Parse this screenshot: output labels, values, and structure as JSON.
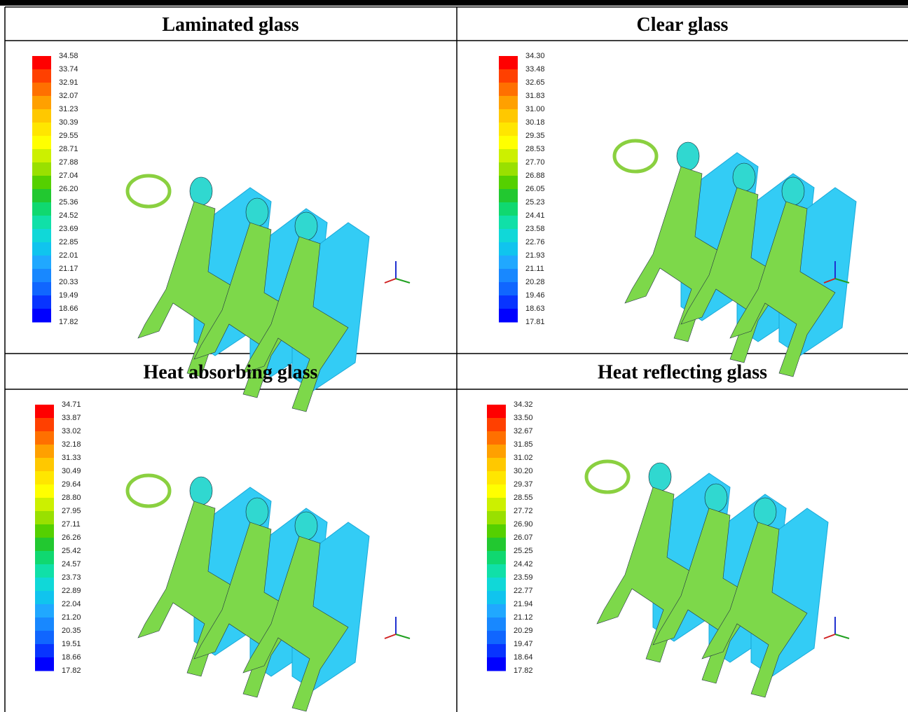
{
  "panels": [
    {
      "title": "Laminated glass",
      "legend": [
        "34.58",
        "33.74",
        "32.91",
        "32.07",
        "31.23",
        "30.39",
        "29.55",
        "28.71",
        "27.88",
        "27.04",
        "26.20",
        "25.36",
        "24.52",
        "23.69",
        "22.85",
        "22.01",
        "21.17",
        "20.33",
        "19.49",
        "18.66",
        "17.82"
      ]
    },
    {
      "title": "Clear glass",
      "legend": [
        "34.30",
        "33.48",
        "32.65",
        "31.83",
        "31.00",
        "30.18",
        "29.35",
        "28.53",
        "27.70",
        "26.88",
        "26.05",
        "25.23",
        "24.41",
        "23.58",
        "22.76",
        "21.93",
        "21.11",
        "20.28",
        "19.46",
        "18.63",
        "17.81"
      ]
    },
    {
      "title": "Heat absorbing glass",
      "legend": [
        "34.71",
        "33.87",
        "33.02",
        "32.18",
        "31.33",
        "30.49",
        "29.64",
        "28.80",
        "27.95",
        "27.11",
        "26.26",
        "25.42",
        "24.57",
        "23.73",
        "22.89",
        "22.04",
        "21.20",
        "20.35",
        "19.51",
        "18.66",
        "17.82"
      ]
    },
    {
      "title": "Heat reflecting glass",
      "legend": [
        "34.32",
        "33.50",
        "32.67",
        "31.85",
        "31.02",
        "30.20",
        "29.37",
        "28.55",
        "27.72",
        "26.90",
        "26.07",
        "25.25",
        "24.42",
        "23.59",
        "22.77",
        "21.94",
        "21.12",
        "20.29",
        "19.47",
        "18.64",
        "17.82"
      ]
    }
  ]
}
